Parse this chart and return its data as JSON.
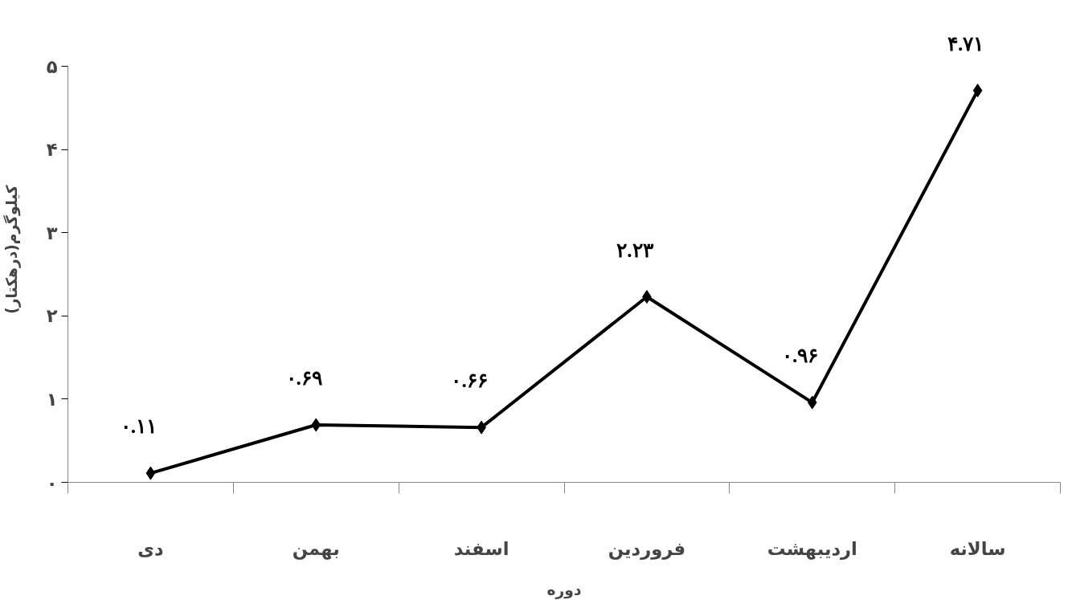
{
  "chart_data": {
    "type": "line",
    "xlabel": "دوره",
    "ylabel": "کیلوگرم(درهکتار)",
    "categories": [
      "دی",
      "بهمن",
      "اسفند",
      "فروردین",
      "اردیبهشت",
      "سالانه"
    ],
    "series": [
      {
        "color": "#000000",
        "values": [
          0.11,
          0.69,
          0.66,
          2.23,
          0.96,
          4.71
        ],
        "value_labels": [
          "۰.۱۱",
          "۰.۶۹",
          "۰.۶۶",
          "۲.۲۳",
          "۰.۹۶",
          "۴.۷۱"
        ]
      }
    ],
    "ylim": [
      0,
      5
    ],
    "yticks": [
      {
        "value": 0,
        "label": "۰"
      },
      {
        "value": 1,
        "label": "۱"
      },
      {
        "value": 2,
        "label": "۲"
      },
      {
        "value": 3,
        "label": "۳"
      },
      {
        "value": 4,
        "label": "۴"
      },
      {
        "value": 5,
        "label": "۵"
      }
    ],
    "marker": "diamond",
    "line_style": "solid",
    "grid": false
  }
}
